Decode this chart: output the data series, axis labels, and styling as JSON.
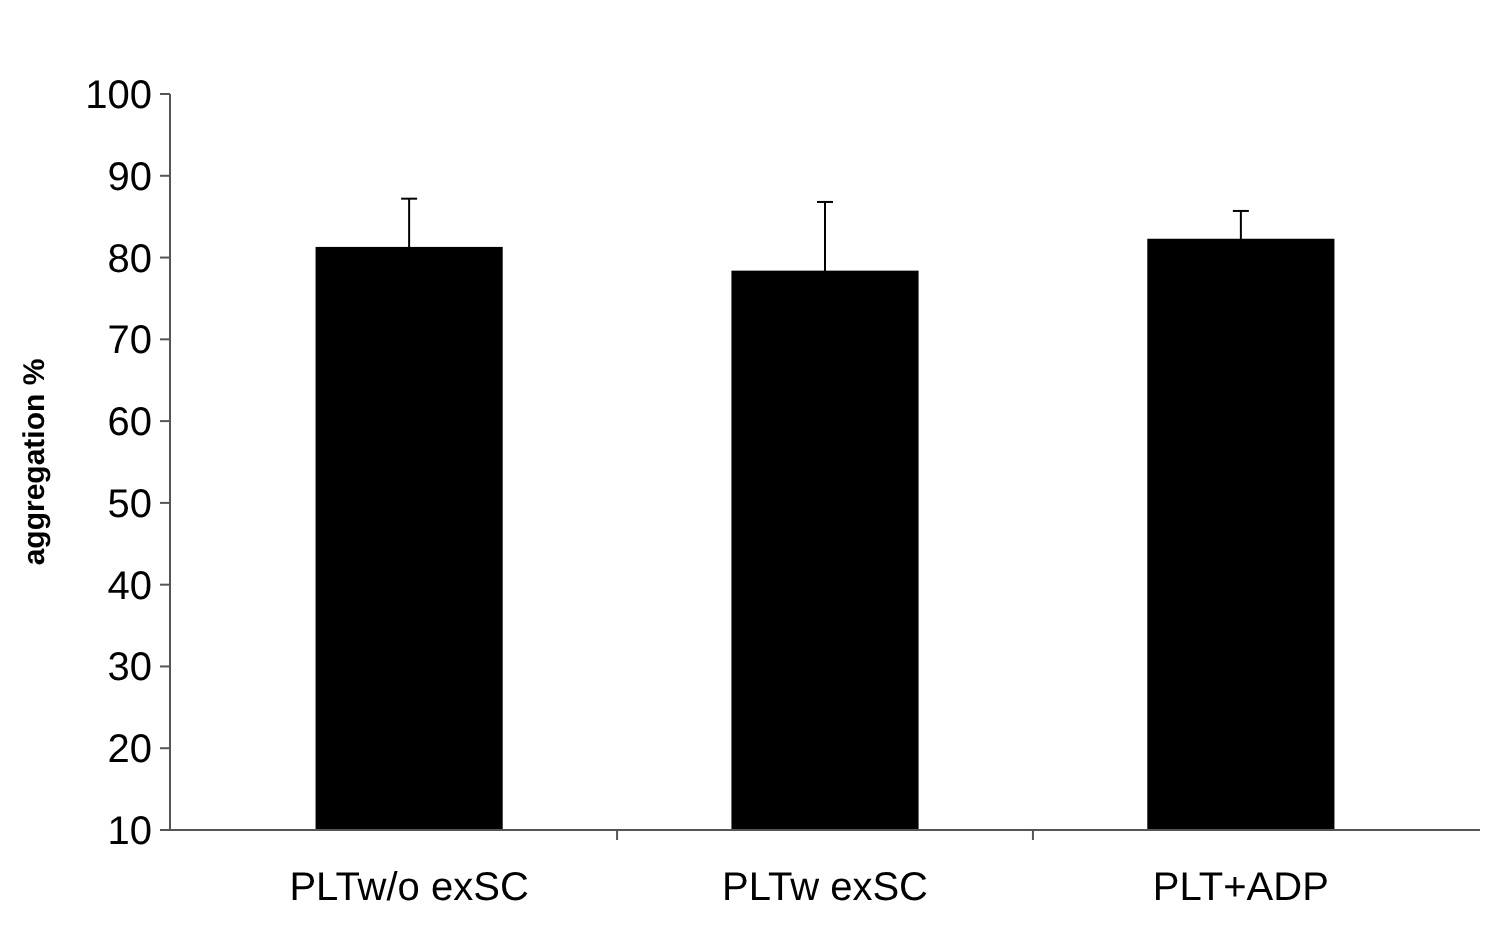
{
  "chart_data": {
    "type": "bar",
    "ylabel": "aggregation %",
    "categories": [
      "PLTw/o exSC",
      "PLTw exSC",
      "PLT+ADP"
    ],
    "values": [
      81.3,
      78.4,
      82.3
    ],
    "errors": [
      5.9,
      8.4,
      3.4
    ],
    "color": "#000000",
    "ylim": [
      10,
      100
    ],
    "yticks": [
      10,
      20,
      30,
      40,
      50,
      60,
      70,
      80,
      90,
      100
    ]
  }
}
